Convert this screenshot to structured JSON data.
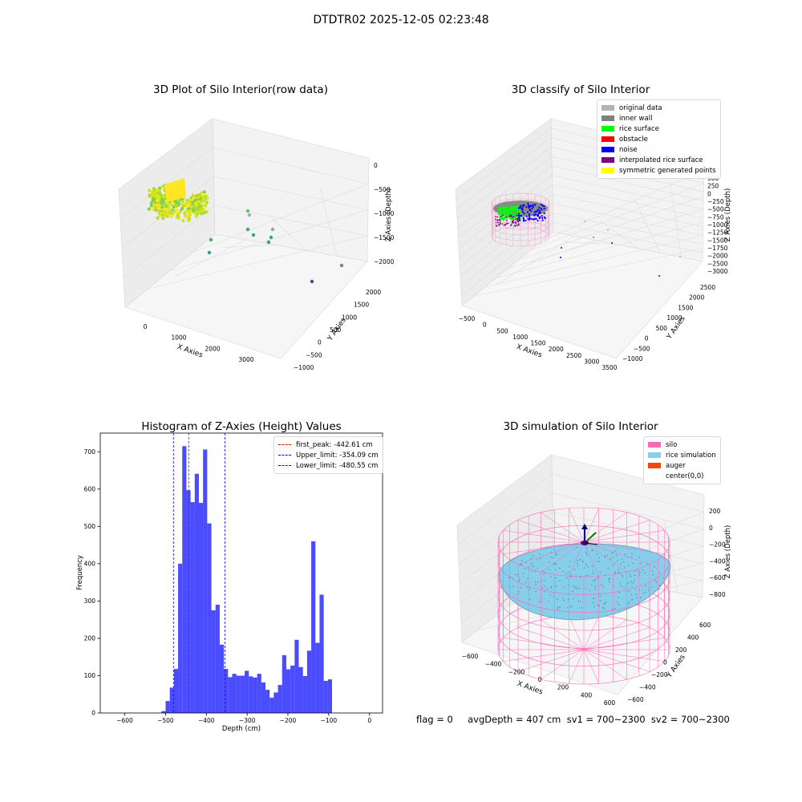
{
  "figure": {
    "title": "DTDTR02 2025-12-05 02:23:48",
    "footer": "flag = 0     avgDepth = 407 cm  sv1 = 700~2300  sv2 = 700~2300"
  },
  "chart_data": [
    {
      "type": "scatter",
      "projection": "3d",
      "title": "3D Plot of Silo Interior(row data)",
      "xlabel": "X Axies",
      "ylabel": "Y Axies",
      "zlabel": "Z Axies (Depth)",
      "x_ticks": [
        "0",
        "1000",
        "2000",
        "3000"
      ],
      "y_ticks": [
        "−1000",
        "−500",
        "0",
        "500",
        "1000",
        "1500",
        "2000"
      ],
      "z_ticks": [
        "0",
        "−500",
        "−1000",
        "−1500",
        "−2000"
      ],
      "grid": true,
      "colormap": "viridis"
    },
    {
      "type": "scatter",
      "projection": "3d",
      "title": "3D classify of Silo Interior",
      "xlabel": "X Axies",
      "ylabel": "Y Axies",
      "zlabel": "Z Axies (Depth)",
      "x_ticks": [
        "−500",
        "0",
        "500",
        "1000",
        "1500",
        "2000",
        "2500",
        "3000",
        "3500"
      ],
      "y_ticks": [
        "−1000",
        "−500",
        "0",
        "500",
        "1000",
        "1500",
        "2000",
        "2500"
      ],
      "z_ticks": [
        "500",
        "250",
        "0",
        "−250",
        "−500",
        "−750",
        "−1000",
        "−1250",
        "−1500",
        "−1750",
        "−2000",
        "−2500",
        "−3000"
      ],
      "grid": true,
      "legend": {
        "position": "top-right",
        "entries": [
          {
            "label": "original data",
            "color": "#b3b3b3"
          },
          {
            "label": "inner wall",
            "color": "#808080"
          },
          {
            "label": "rice surface",
            "color": "#00ff00"
          },
          {
            "label": "obstacle",
            "color": "#ff0000"
          },
          {
            "label": "noise",
            "color": "#0000ff"
          },
          {
            "label": "interpolated rice surface",
            "color": "#800080"
          },
          {
            "label": "symmetric generated points",
            "color": "#ffff00"
          }
        ]
      }
    },
    {
      "type": "bar",
      "title": "Histogram of Z-Axies (Height) Values",
      "xlabel": "Depth (cm)",
      "ylabel": "Frequency",
      "xlim": [
        -660,
        32
      ],
      "ylim": [
        0,
        750
      ],
      "x_ticks": [
        -600,
        -500,
        -400,
        -300,
        -200,
        -100,
        0
      ],
      "y_ticks": [
        0,
        100,
        200,
        300,
        400,
        500,
        600,
        700
      ],
      "bar_color": "#0000ff",
      "bins": {
        "start": -510,
        "width": 10.2,
        "values": [
          5,
          32,
          68,
          118,
          400,
          715,
          597,
          565,
          641,
          563,
          706,
          508,
          275,
          290,
          183,
          118,
          96,
          105,
          100,
          100,
          113,
          98,
          95,
          105,
          82,
          62,
          41,
          55,
          75,
          155,
          117,
          127,
          196,
          123,
          99,
          167,
          460,
          188,
          317,
          86,
          90
        ]
      },
      "lines": [
        {
          "label": "first_peak: -442.61 cm",
          "x": -442.61,
          "color": "#ff0000"
        },
        {
          "label": "Upper_limit: -354.09 cm",
          "x": -354.09,
          "color": "#0000ff"
        },
        {
          "label": "Lower_limit: -480.55 cm",
          "x": -480.55,
          "color": "#0000ff"
        }
      ],
      "legend": {
        "position": "top-right"
      }
    },
    {
      "type": "scatter",
      "projection": "3d",
      "title": "3D simulation of Silo Interior",
      "xlabel": "X Axies",
      "ylabel": "Y Axies",
      "zlabel": "Z Axies (Depth)",
      "x_ticks": [
        "−600",
        "−400",
        "−200",
        "0",
        "200",
        "400",
        "600"
      ],
      "y_ticks": [
        "−600",
        "−400",
        "−200",
        "0",
        "200",
        "400",
        "600"
      ],
      "z_ticks": [
        "200",
        "0",
        "−200",
        "−400",
        "−600",
        "−800"
      ],
      "grid": true,
      "legend": {
        "position": "top-right",
        "entries": [
          {
            "label": "silo",
            "color": "#ff69b4"
          },
          {
            "label": "rice simulation",
            "color": "#87ceeb"
          },
          {
            "label": "auger",
            "color": "#ff4500"
          },
          {
            "label": "center(0,0)",
            "color": "#ffffff"
          }
        ]
      }
    }
  ]
}
